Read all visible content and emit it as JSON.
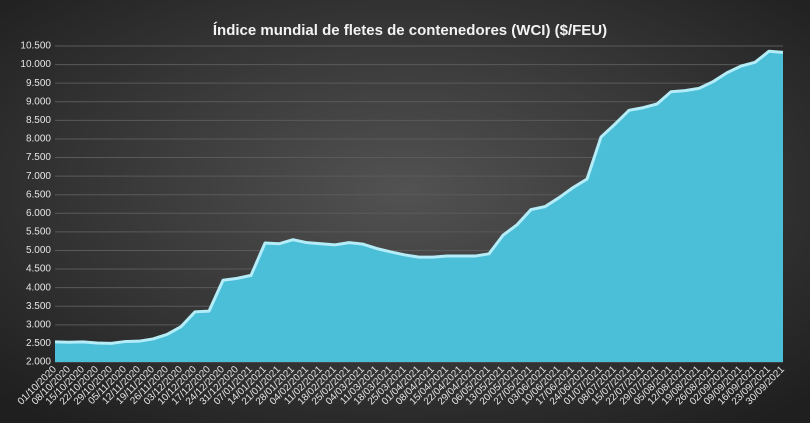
{
  "chart_data": {
    "type": "area",
    "title": "Índice mundial de fletes de contenedores (WCI) ($/FEU)",
    "categories": [
      "01/10/2020",
      "08/10/2020",
      "15/10/2020",
      "22/10/2020",
      "29/10/2020",
      "05/11/2020",
      "12/11/2020",
      "19/11/2020",
      "26/11/2020",
      "03/12/2020",
      "10/12/2020",
      "17/12/2020",
      "24/12/2020",
      "31/12/2020",
      "07/01/2021",
      "14/01/2021",
      "21/01/2021",
      "28/01/2021",
      "04/02/2021",
      "11/02/2021",
      "18/02/2021",
      "25/02/2021",
      "04/03/2021",
      "11/03/2021",
      "18/03/2021",
      "25/03/2021",
      "01/04/2021",
      "08/04/2021",
      "15/04/2021",
      "22/04/2021",
      "29/04/2021",
      "06/05/2021",
      "13/05/2021",
      "20/05/2021",
      "27/05/2021",
      "03/06/2021",
      "10/06/2021",
      "17/06/2021",
      "24/06/2021",
      "01/07/2021",
      "08/07/2021",
      "15/07/2021",
      "22/07/2021",
      "29/07/2021",
      "05/08/2021",
      "12/08/2021",
      "19/08/2021",
      "26/08/2021",
      "02/09/2021",
      "09/09/2021",
      "16/09/2021",
      "23/09/2021",
      "30/09/2021"
    ],
    "values": [
      2540,
      2530,
      2540,
      2510,
      2500,
      2550,
      2560,
      2620,
      2740,
      2950,
      3350,
      3370,
      4200,
      4250,
      4330,
      5200,
      5180,
      5290,
      5210,
      5180,
      5150,
      5210,
      5170,
      5050,
      4960,
      4880,
      4820,
      4820,
      4850,
      4850,
      4850,
      4910,
      5410,
      5690,
      6100,
      6180,
      6420,
      6690,
      6920,
      8050,
      8400,
      8770,
      8840,
      8940,
      9270,
      9300,
      9360,
      9540,
      9780,
      9960,
      10060,
      10360,
      10330
    ],
    "color": "#4cbfd8",
    "ylim": [
      2000,
      10500
    ],
    "yticks": [
      {
        "value": 2000,
        "label": "2.000"
      },
      {
        "value": 2500,
        "label": "2.500"
      },
      {
        "value": 3000,
        "label": "3.000"
      },
      {
        "value": 3500,
        "label": "3.500"
      },
      {
        "value": 4000,
        "label": "4.000"
      },
      {
        "value": 4500,
        "label": "4.500"
      },
      {
        "value": 5000,
        "label": "5.000"
      },
      {
        "value": 5500,
        "label": "5.500"
      },
      {
        "value": 6000,
        "label": "6.000"
      },
      {
        "value": 6500,
        "label": "6.500"
      },
      {
        "value": 7000,
        "label": "7.000"
      },
      {
        "value": 7500,
        "label": "7.500"
      },
      {
        "value": 8000,
        "label": "8.000"
      },
      {
        "value": 8500,
        "label": "8.500"
      },
      {
        "value": 9000,
        "label": "9.000"
      },
      {
        "value": 9500,
        "label": "9.500"
      },
      {
        "value": 10000,
        "label": "10.000"
      },
      {
        "value": 10500,
        "label": "10.500"
      }
    ],
    "grid": true
  }
}
